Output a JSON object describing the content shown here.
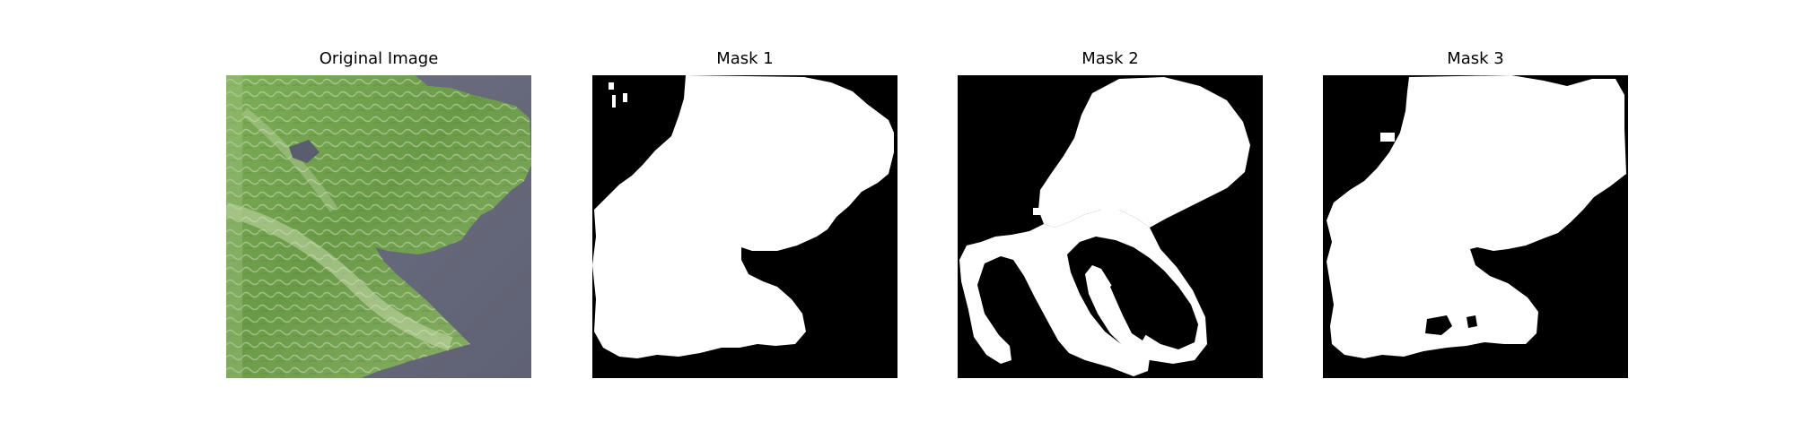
{
  "figure": {
    "panels": [
      {
        "title": "Original Image",
        "kind": "photo"
      },
      {
        "title": "Mask 1",
        "kind": "binary-mask"
      },
      {
        "title": "Mask 2",
        "kind": "binary-mask"
      },
      {
        "title": "Mask 3",
        "kind": "binary-mask"
      }
    ],
    "colors": {
      "mask_foreground": "#ffffff",
      "mask_background": "#000000",
      "leaf_green": "#6f9a4a",
      "background_gray": "#6c6f80"
    }
  }
}
